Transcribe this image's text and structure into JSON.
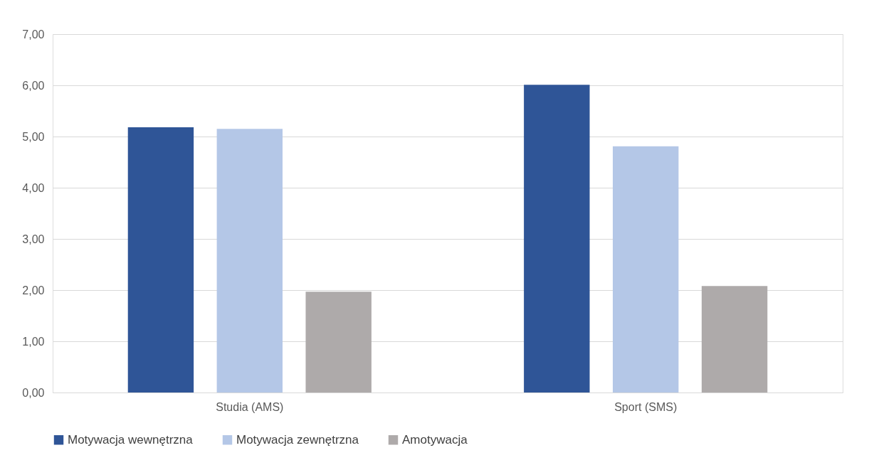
{
  "chart_data": {
    "type": "bar",
    "categories": [
      "Studia (AMS)",
      "Sport (SMS)"
    ],
    "series": [
      {
        "name": "Motywacja wewnętrzna",
        "color": "#2f5597",
        "values": [
          5.18,
          6.01
        ]
      },
      {
        "name": "Motywacja zewnętrzna",
        "color": "#b4c7e7",
        "values": [
          5.15,
          4.81
        ]
      },
      {
        "name": "Amotywacja",
        "color": "#aeaaaa",
        "values": [
          1.97,
          2.08
        ]
      }
    ],
    "ylim": [
      0,
      7
    ],
    "yticks": [
      {
        "value": 0,
        "label": "0,00"
      },
      {
        "value": 1,
        "label": "1,00"
      },
      {
        "value": 2,
        "label": "2,00"
      },
      {
        "value": 3,
        "label": "3,00"
      },
      {
        "value": 4,
        "label": "4,00"
      },
      {
        "value": 5,
        "label": "5,00"
      },
      {
        "value": 6,
        "label": "6,00"
      },
      {
        "value": 7,
        "label": "7,00"
      }
    ],
    "grid": "y",
    "legend": "bottom"
  }
}
